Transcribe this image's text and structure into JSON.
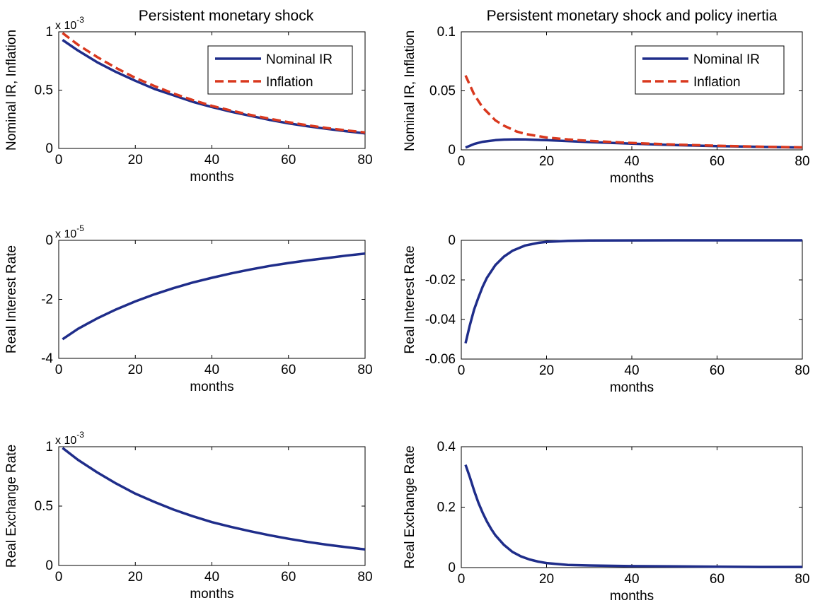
{
  "chart_data": [
    {
      "id": "p1",
      "type": "line",
      "title": "Persistent monetary shock",
      "xlabel": "months",
      "ylabel": "Nominal IR, Inflation",
      "xlim": [
        0,
        80
      ],
      "ylim": [
        0,
        1
      ],
      "xticks": [
        0,
        20,
        40,
        60,
        80
      ],
      "yticks": [
        0,
        0.5,
        1
      ],
      "ytick_labels": [
        "0",
        "0.5",
        "1"
      ],
      "exponent_base": "x 10",
      "exponent_power": "-3",
      "grid": false,
      "legend": "top-right",
      "x": [
        1,
        5,
        10,
        15,
        20,
        25,
        30,
        35,
        40,
        45,
        50,
        55,
        60,
        65,
        70,
        75,
        80
      ],
      "series": [
        {
          "name": "Nominal IR",
          "color": "#1f2d8a",
          "dash": "solid",
          "values": [
            0.93,
            0.84,
            0.74,
            0.655,
            0.58,
            0.51,
            0.455,
            0.4,
            0.355,
            0.315,
            0.28,
            0.245,
            0.215,
            0.19,
            0.168,
            0.148,
            0.13
          ]
        },
        {
          "name": "Inflation",
          "color": "#d9381e",
          "dash": "dashed",
          "values": [
            0.99,
            0.89,
            0.785,
            0.69,
            0.605,
            0.535,
            0.47,
            0.415,
            0.365,
            0.325,
            0.288,
            0.255,
            0.225,
            0.198,
            0.175,
            0.155,
            0.137
          ]
        }
      ]
    },
    {
      "id": "p2",
      "type": "line",
      "title": "Persistent monetary shock and policy inertia",
      "xlabel": "months",
      "ylabel": "Nominal IR, Inflation",
      "xlim": [
        0,
        80
      ],
      "ylim": [
        0,
        0.1
      ],
      "xticks": [
        0,
        20,
        40,
        60,
        80
      ],
      "yticks": [
        0,
        0.05,
        0.1
      ],
      "ytick_labels": [
        "0",
        "0.05",
        "0.1"
      ],
      "grid": false,
      "legend": "top-right",
      "x": [
        1,
        3,
        5,
        8,
        10,
        13,
        15,
        20,
        25,
        30,
        40,
        50,
        60,
        70,
        80
      ],
      "series": [
        {
          "name": "Nominal IR",
          "color": "#1f2d8a",
          "dash": "solid",
          "values": [
            0.002,
            0.005,
            0.0068,
            0.0082,
            0.0087,
            0.0089,
            0.0088,
            0.0082,
            0.0074,
            0.0066,
            0.0052,
            0.0041,
            0.0032,
            0.0025,
            0.002
          ]
        },
        {
          "name": "Inflation",
          "color": "#d9381e",
          "dash": "dashed",
          "values": [
            0.063,
            0.047,
            0.036,
            0.025,
            0.0205,
            0.0155,
            0.0135,
            0.0105,
            0.0088,
            0.0076,
            0.0058,
            0.0045,
            0.0035,
            0.0027,
            0.0021
          ]
        }
      ]
    },
    {
      "id": "p3",
      "type": "line",
      "title": "",
      "xlabel": "months",
      "ylabel": "Real Interest Rate",
      "xlim": [
        0,
        80
      ],
      "ylim": [
        -4,
        0
      ],
      "xticks": [
        0,
        20,
        40,
        60,
        80
      ],
      "yticks": [
        -4,
        -2,
        0
      ],
      "ytick_labels": [
        "-4",
        "-2",
        "0"
      ],
      "exponent_base": "x 10",
      "exponent_power": "-5",
      "grid": false,
      "legend": "none",
      "x": [
        1,
        5,
        10,
        15,
        20,
        25,
        30,
        35,
        40,
        45,
        50,
        55,
        60,
        65,
        70,
        75,
        80
      ],
      "series": [
        {
          "color": "#1f2d8a",
          "dash": "solid",
          "values": [
            -3.35,
            -3.0,
            -2.65,
            -2.34,
            -2.07,
            -1.83,
            -1.62,
            -1.43,
            -1.27,
            -1.12,
            -0.99,
            -0.87,
            -0.77,
            -0.68,
            -0.6,
            -0.52,
            -0.45
          ]
        }
      ]
    },
    {
      "id": "p4",
      "type": "line",
      "title": "",
      "xlabel": "months",
      "ylabel": "Real Interest Rate",
      "xlim": [
        0,
        80
      ],
      "ylim": [
        -0.06,
        0
      ],
      "xticks": [
        0,
        20,
        40,
        60,
        80
      ],
      "yticks": [
        -0.06,
        -0.04,
        -0.02,
        0
      ],
      "ytick_labels": [
        "-0.06",
        "-0.04",
        "-0.02",
        "0"
      ],
      "grid": false,
      "legend": "none",
      "x": [
        1,
        2,
        3,
        4,
        5,
        6,
        8,
        10,
        12,
        15,
        18,
        20,
        25,
        30,
        40,
        50,
        60,
        70,
        80
      ],
      "series": [
        {
          "color": "#1f2d8a",
          "dash": "solid",
          "values": [
            -0.052,
            -0.043,
            -0.035,
            -0.029,
            -0.0235,
            -0.019,
            -0.0125,
            -0.0082,
            -0.0053,
            -0.0026,
            -0.0013,
            -0.0008,
            -0.00025,
            -0.0001,
            -3e-05,
            -1e-05,
            0,
            0,
            0
          ]
        }
      ]
    },
    {
      "id": "p5",
      "type": "line",
      "title": "",
      "xlabel": "months",
      "ylabel": "Real Exchange Rate",
      "xlim": [
        0,
        80
      ],
      "ylim": [
        0,
        1
      ],
      "xticks": [
        0,
        20,
        40,
        60,
        80
      ],
      "yticks": [
        0,
        0.5,
        1
      ],
      "ytick_labels": [
        "0",
        "0.5",
        "1"
      ],
      "exponent_base": "x 10",
      "exponent_power": "-3",
      "grid": false,
      "legend": "none",
      "x": [
        1,
        5,
        10,
        15,
        20,
        25,
        30,
        35,
        40,
        45,
        50,
        55,
        60,
        65,
        70,
        75,
        80
      ],
      "series": [
        {
          "color": "#1f2d8a",
          "dash": "solid",
          "values": [
            0.99,
            0.89,
            0.785,
            0.69,
            0.605,
            0.535,
            0.47,
            0.415,
            0.365,
            0.325,
            0.288,
            0.255,
            0.225,
            0.198,
            0.175,
            0.155,
            0.135
          ]
        }
      ]
    },
    {
      "id": "p6",
      "type": "line",
      "title": "",
      "xlabel": "months",
      "ylabel": "Real Exchange Rate",
      "xlim": [
        0,
        80
      ],
      "ylim": [
        0,
        0.4
      ],
      "xticks": [
        0,
        20,
        40,
        60,
        80
      ],
      "yticks": [
        0,
        0.2,
        0.4
      ],
      "ytick_labels": [
        "0",
        "0.2",
        "0.4"
      ],
      "grid": false,
      "legend": "none",
      "x": [
        1,
        2,
        3,
        4,
        5,
        6,
        7,
        8,
        10,
        12,
        14,
        16,
        18,
        20,
        25,
        30,
        40,
        50,
        60,
        70,
        80
      ],
      "series": [
        {
          "color": "#1f2d8a",
          "dash": "solid",
          "values": [
            0.34,
            0.3,
            0.255,
            0.215,
            0.182,
            0.153,
            0.128,
            0.107,
            0.075,
            0.052,
            0.037,
            0.027,
            0.02,
            0.015,
            0.009,
            0.007,
            0.005,
            0.004,
            0.003,
            0.002,
            0.002
          ]
        }
      ]
    }
  ]
}
